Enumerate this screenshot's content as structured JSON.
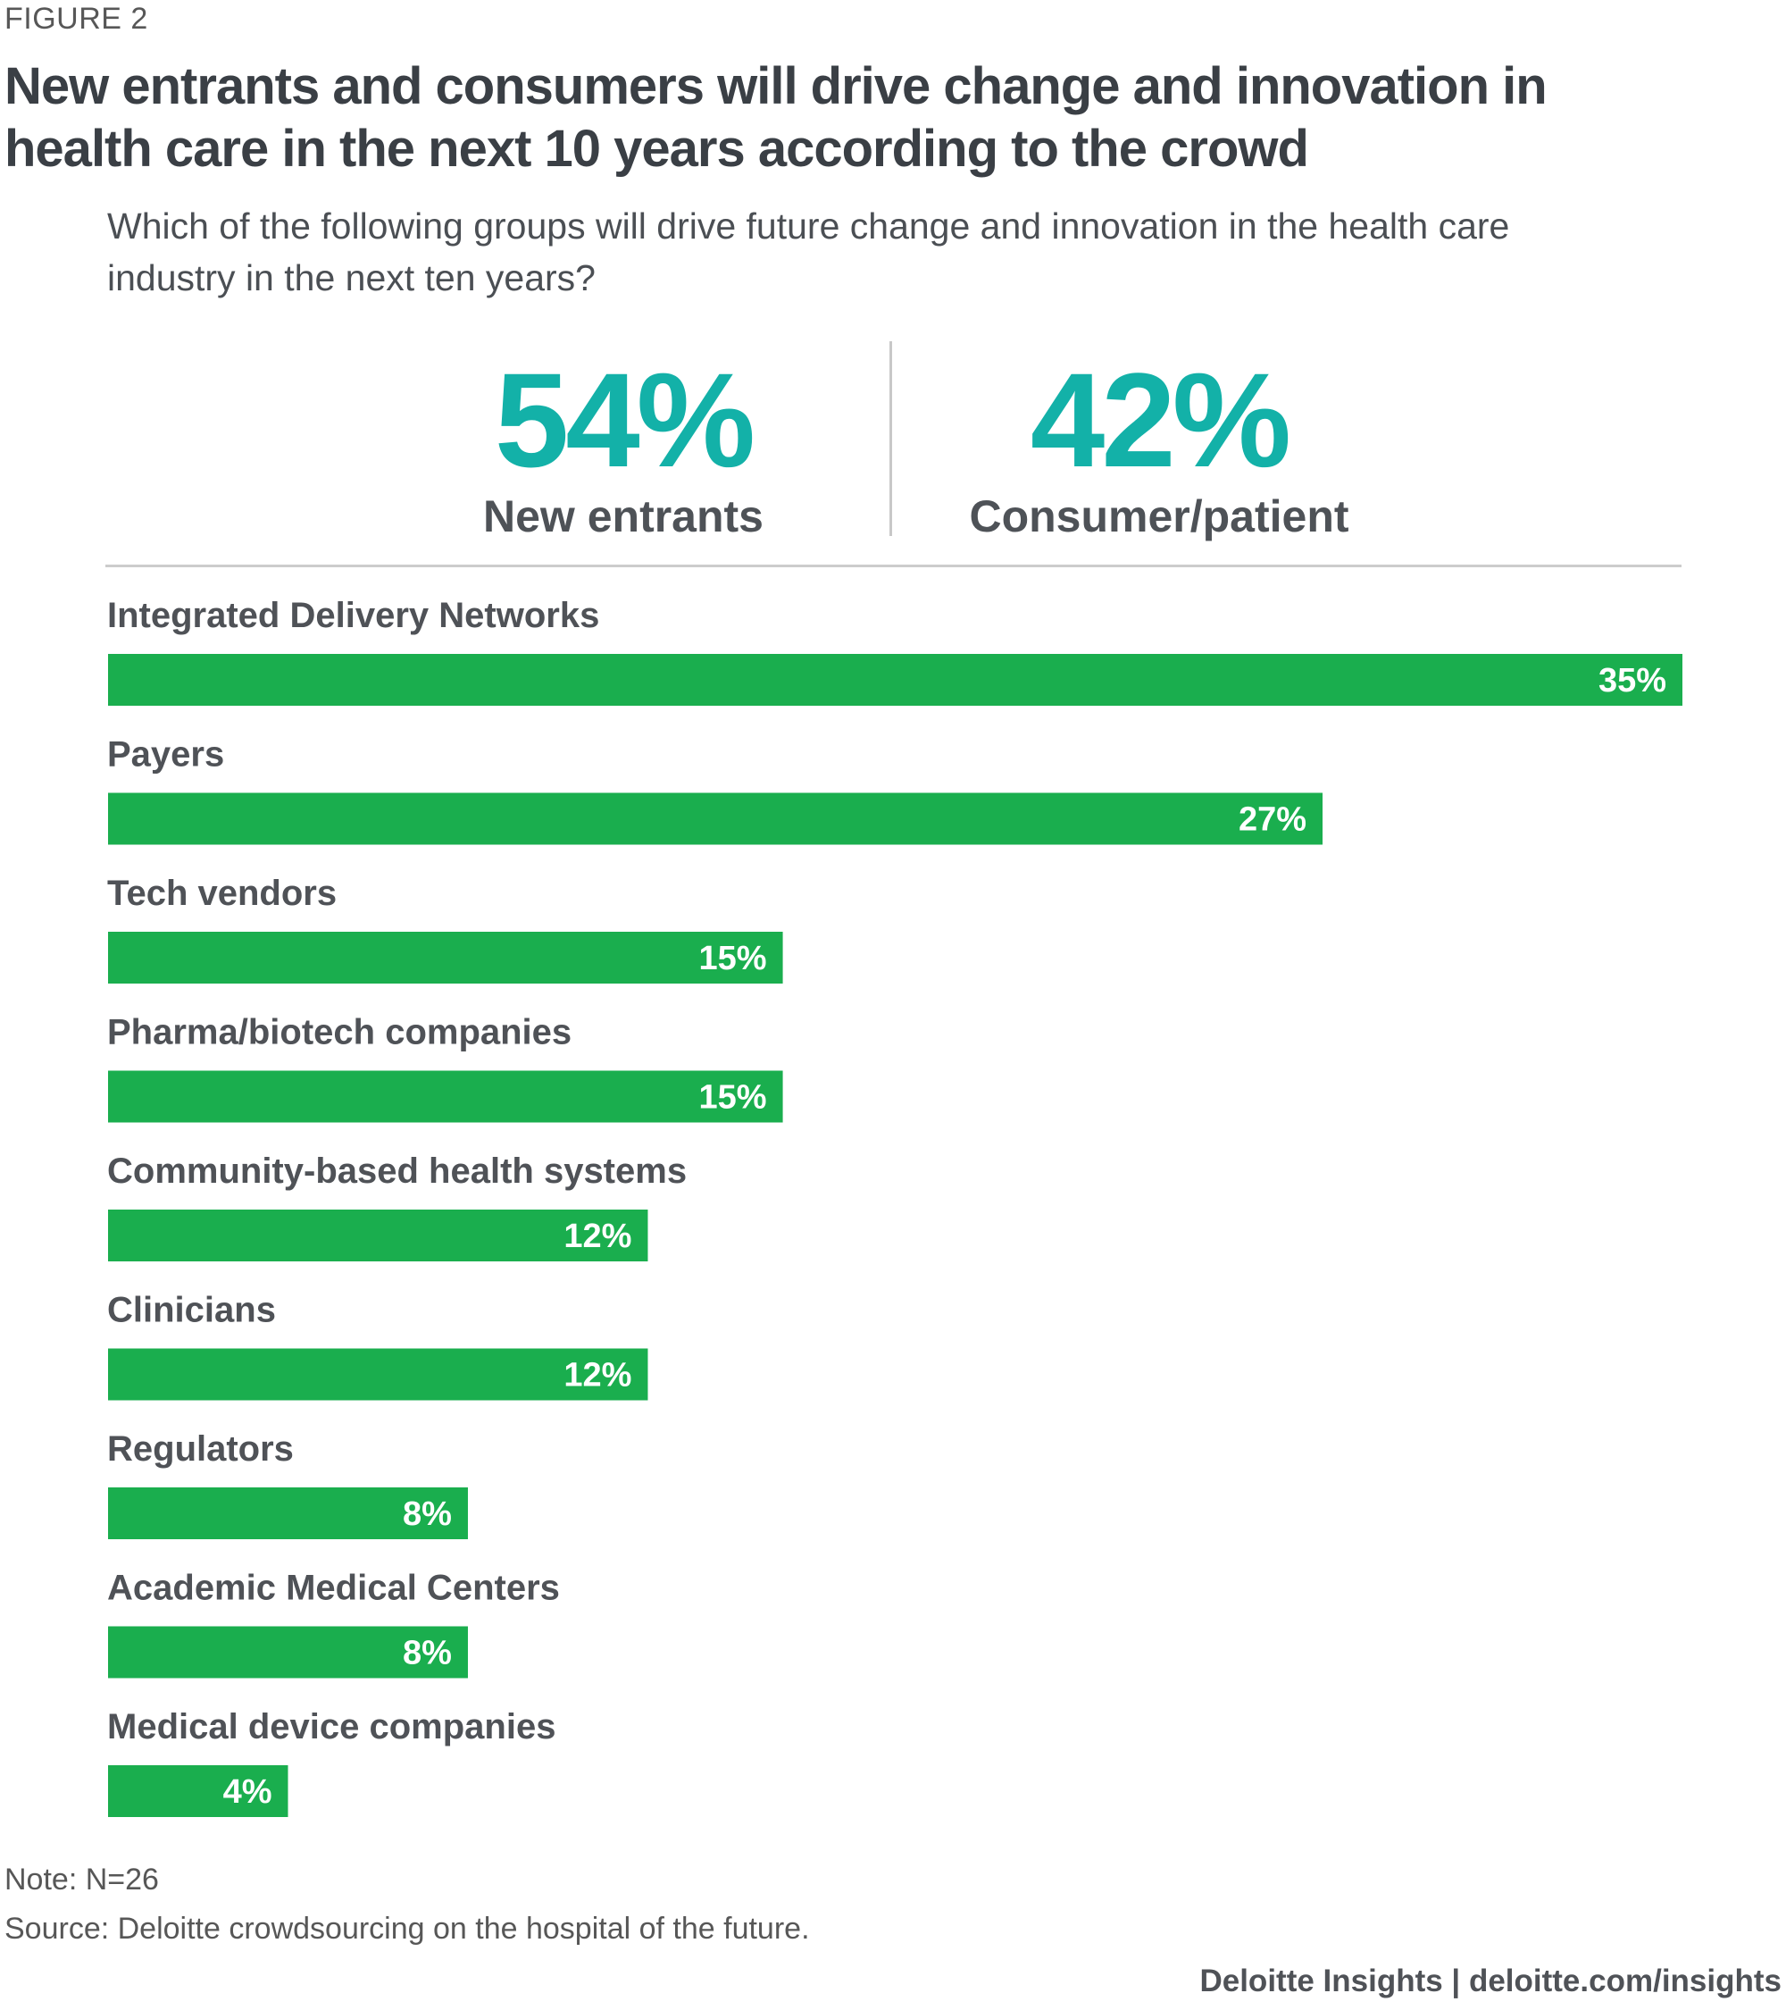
{
  "figure_label": "FIGURE 2",
  "title": "New entrants and consumers will drive change and innovation in health care in the next 10 years according to the crowd",
  "question": "Which of the following groups will drive future change and innovation in the health care industry in the next ten years?",
  "kpis": [
    {
      "value": "54%",
      "label": "New entrants"
    },
    {
      "value": "42%",
      "label": "Consumer/patient"
    }
  ],
  "chart_data": {
    "type": "bar",
    "orientation": "horizontal",
    "title": "Which of the following groups will drive future change and innovation in the health care industry in the next ten years?",
    "categories": [
      "Integrated Delivery Networks",
      "Payers",
      "Tech vendors",
      "Pharma/biotech companies",
      "Community-based health systems",
      "Clinicians",
      "Regulators",
      "Academic Medical Centers",
      "Medical device companies"
    ],
    "values": [
      35,
      27,
      15,
      15,
      12,
      12,
      8,
      8,
      4
    ],
    "value_labels": [
      "35%",
      "27%",
      "15%",
      "15%",
      "12%",
      "12%",
      "8%",
      "8%",
      "4%"
    ],
    "unit": "%",
    "xlim": [
      0,
      35
    ],
    "bar_color": "#1aae4e",
    "grid": false,
    "legend": "none"
  },
  "note": "Note: N=26",
  "source": "Source: Deloitte crowdsourcing on the hospital of the future.",
  "credit": "Deloitte Insights | deloitte.com/insights",
  "colors": {
    "accent": "#13b1a8",
    "bar": "#1aae4e",
    "text": "#4f5257"
  }
}
